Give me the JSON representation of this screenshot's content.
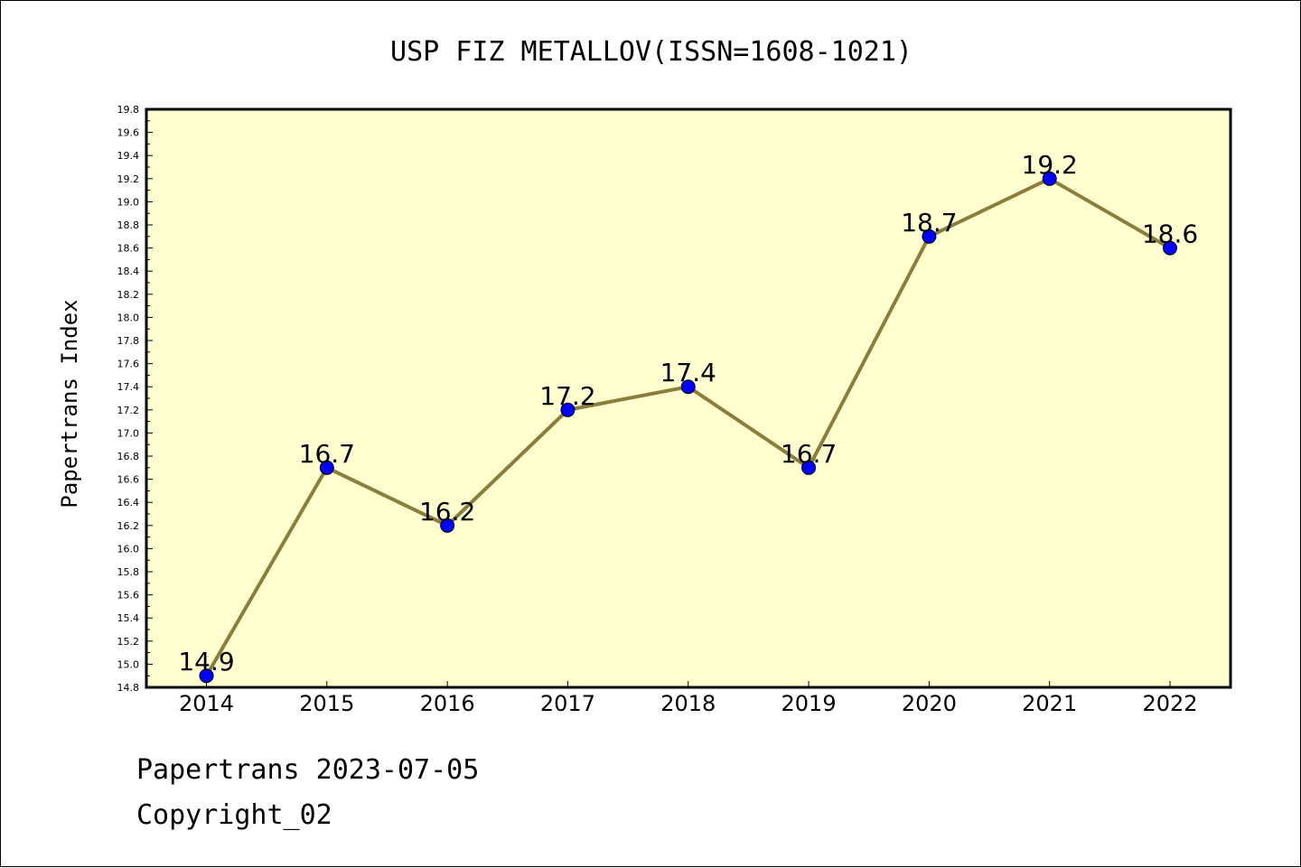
{
  "chart_data": {
    "type": "line",
    "title": "USP FIZ METALLOV(ISSN=1608-1021)",
    "ylabel": "Papertrans Index",
    "xlabel": "",
    "categories": [
      "2014",
      "2015",
      "2016",
      "2017",
      "2018",
      "2019",
      "2020",
      "2021",
      "2022"
    ],
    "values": [
      14.9,
      16.7,
      16.2,
      17.2,
      17.4,
      16.7,
      18.7,
      19.2,
      18.6
    ],
    "data_labels": [
      "14.9",
      "16.7",
      "16.2",
      "17.2",
      "17.4",
      "16.7",
      "18.7",
      "19.2",
      "18.6"
    ],
    "ylim": [
      14.8,
      19.8
    ],
    "yticks": [
      "14.8",
      "15.0",
      "15.2",
      "15.4",
      "15.6",
      "15.8",
      "16.0",
      "16.2",
      "16.4",
      "16.6",
      "16.8",
      "17.0",
      "17.2",
      "17.4",
      "17.6",
      "17.8",
      "18.0",
      "18.2",
      "18.4",
      "18.6",
      "18.8",
      "19.0",
      "19.2",
      "19.4",
      "19.6",
      "19.8"
    ],
    "grid": false,
    "colors": {
      "plot_bg": "#ffffd0",
      "line": "#8b7d3a",
      "marker": "#0000ff"
    }
  },
  "footer": {
    "line1": "Papertrans 2023-07-05",
    "line2": "Copyright_02"
  }
}
